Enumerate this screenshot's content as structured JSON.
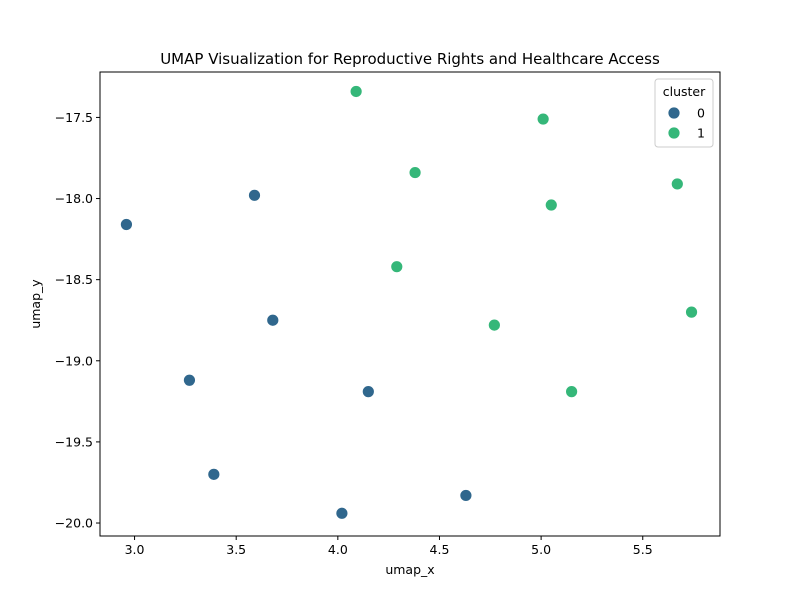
{
  "chart_data": {
    "type": "scatter",
    "title": "UMAP Visualization for Reproductive Rights and Healthcare Access",
    "xlabel": "umap_x",
    "ylabel": "umap_y",
    "xlim": [
      2.83,
      5.88
    ],
    "ylim": [
      -20.08,
      -17.22
    ],
    "xticks": [
      3.0,
      3.5,
      4.0,
      4.5,
      5.0,
      5.5
    ],
    "xtick_labels": [
      "3.0",
      "3.5",
      "4.0",
      "4.5",
      "5.0",
      "5.5"
    ],
    "yticks": [
      -17.5,
      -18.0,
      -18.5,
      -19.0,
      -19.5,
      -20.0
    ],
    "ytick_labels": [
      "−17.5",
      "−18.0",
      "−18.5",
      "−19.0",
      "−19.5",
      "−20.0"
    ],
    "grid": false,
    "legend": {
      "title": "cluster",
      "placement": "top-right"
    },
    "series": [
      {
        "name": "0",
        "color": "#30678d",
        "points": [
          {
            "x": 2.96,
            "y": -18.16
          },
          {
            "x": 3.59,
            "y": -17.98
          },
          {
            "x": 3.68,
            "y": -18.75
          },
          {
            "x": 3.27,
            "y": -19.12
          },
          {
            "x": 3.39,
            "y": -19.7
          },
          {
            "x": 4.15,
            "y": -19.19
          },
          {
            "x": 4.02,
            "y": -19.94
          },
          {
            "x": 4.63,
            "y": -19.83
          }
        ]
      },
      {
        "name": "1",
        "color": "#35b779",
        "points": [
          {
            "x": 4.09,
            "y": -17.34
          },
          {
            "x": 5.01,
            "y": -17.51
          },
          {
            "x": 4.38,
            "y": -17.84
          },
          {
            "x": 5.67,
            "y": -17.91
          },
          {
            "x": 5.05,
            "y": -18.04
          },
          {
            "x": 4.29,
            "y": -18.42
          },
          {
            "x": 4.77,
            "y": -18.78
          },
          {
            "x": 5.74,
            "y": -18.7
          },
          {
            "x": 5.15,
            "y": -19.19
          }
        ]
      }
    ]
  }
}
